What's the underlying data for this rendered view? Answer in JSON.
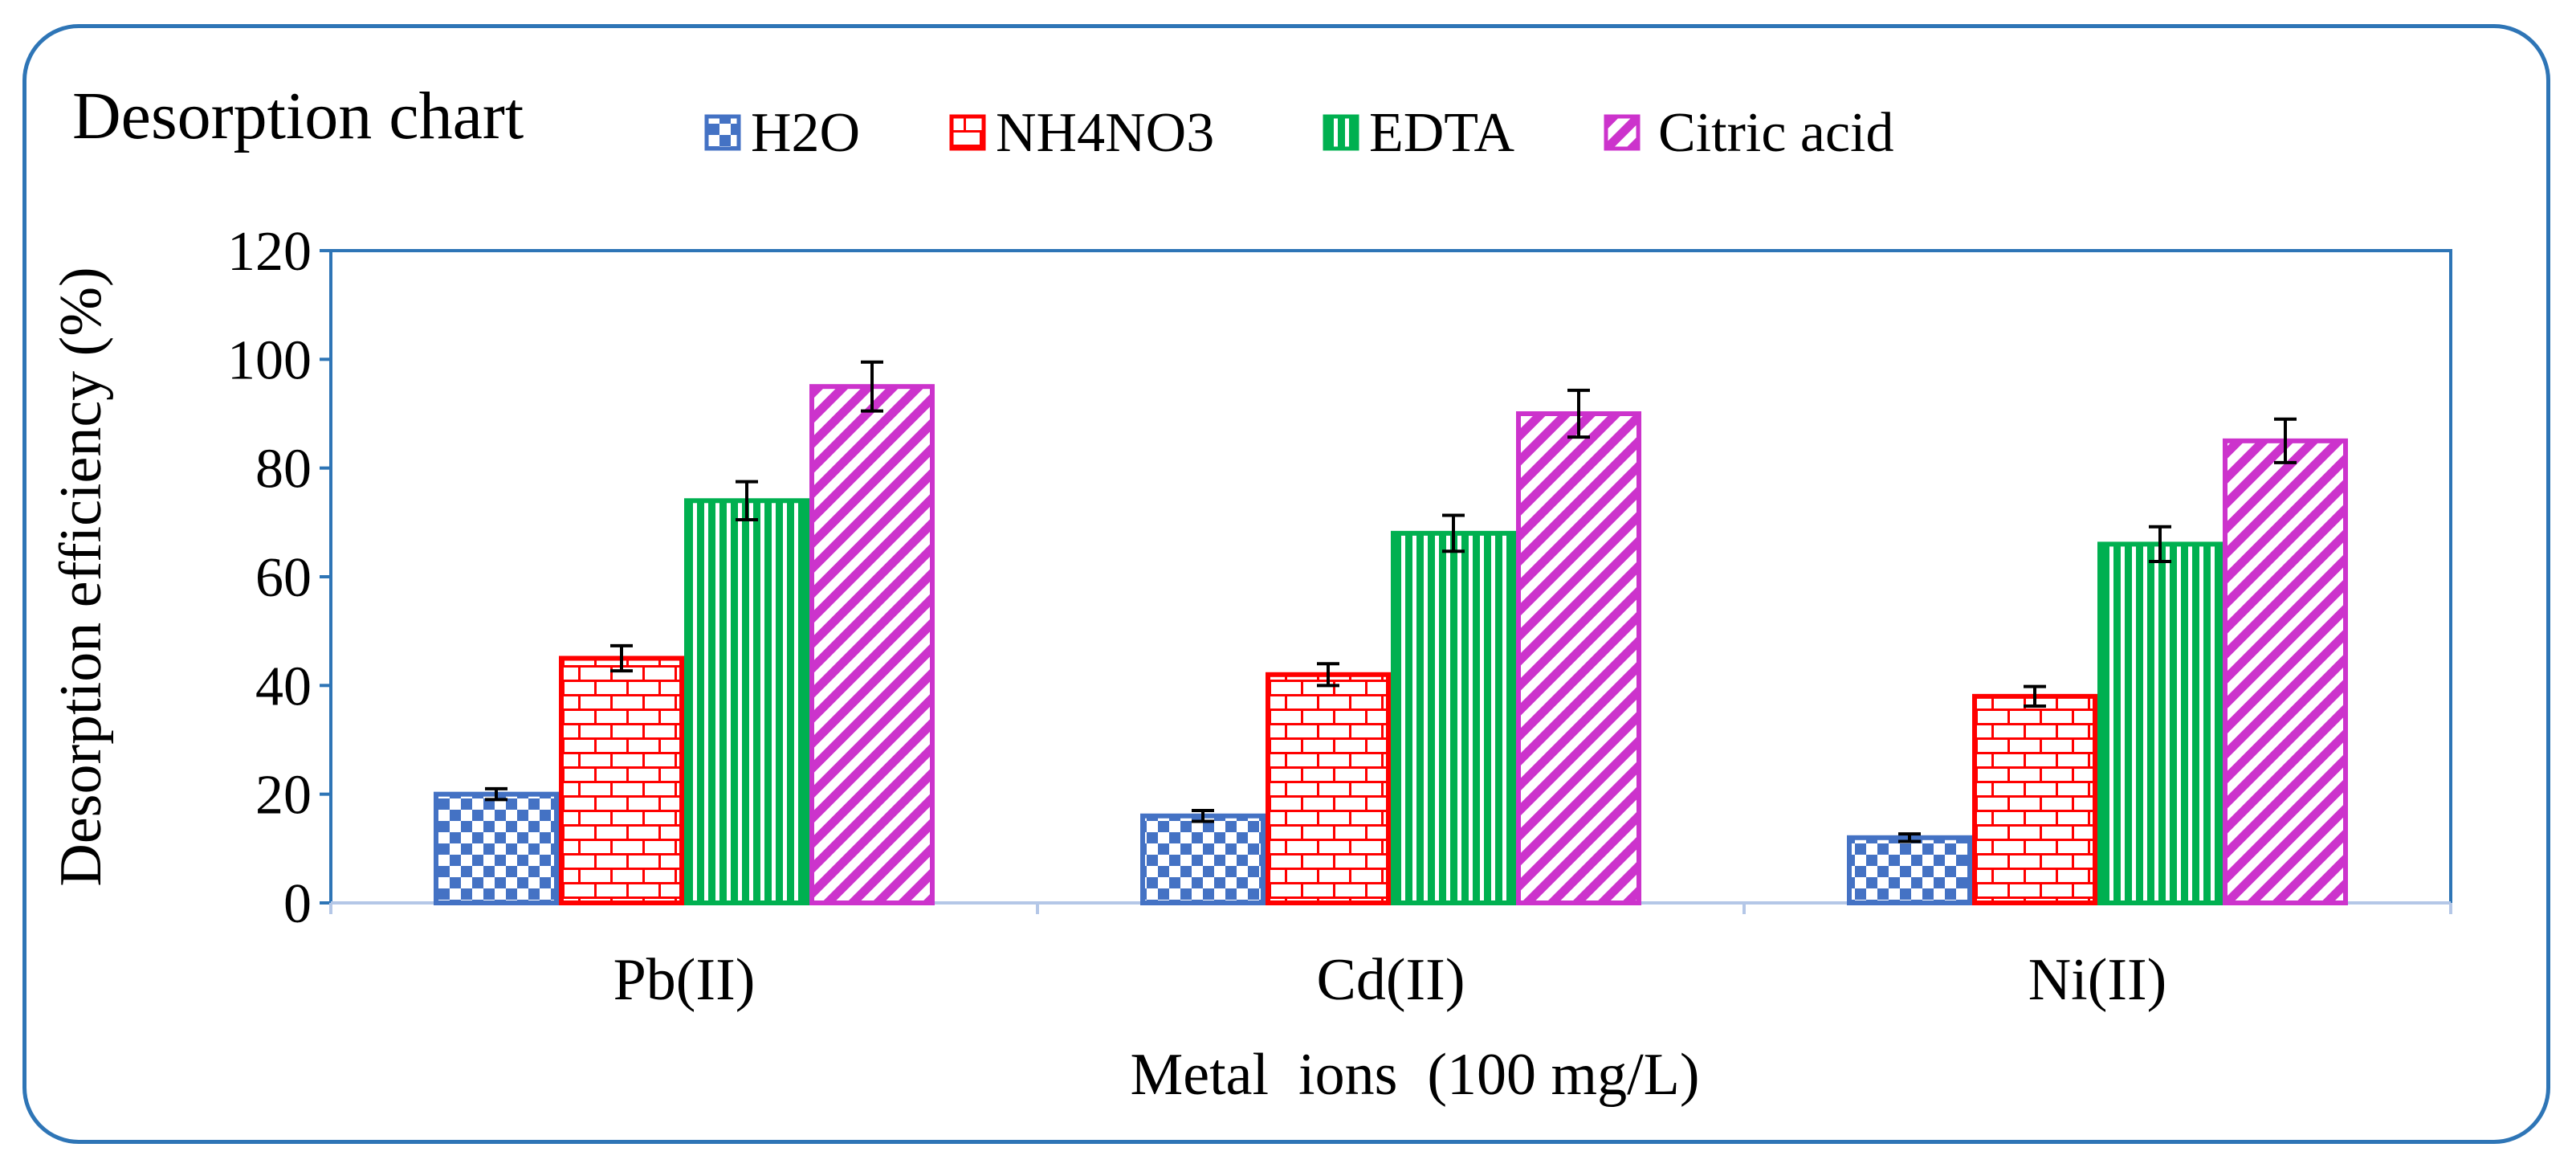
{
  "chart_data": {
    "type": "bar",
    "title": "Desorption chart",
    "xlabel": "Metal  ions  (100 mg/L)",
    "ylabel": "Desorption efficiency (%)",
    "ylim": [
      0,
      120
    ],
    "yticks": [
      0,
      20,
      40,
      60,
      80,
      100,
      120
    ],
    "categories": [
      "Pb(II)",
      "Cd(II)",
      "Ni(II)"
    ],
    "legend_position": "top",
    "series": [
      {
        "name": "H2O",
        "color": "#4472c4",
        "pattern": "checker",
        "values": [
          20,
          16,
          12
        ],
        "errors": [
          1,
          1,
          0.7
        ]
      },
      {
        "name": "NH4NO3",
        "color": "#ff0000",
        "pattern": "brick",
        "values": [
          45,
          42,
          38
        ],
        "errors": [
          2.3,
          2,
          1.8
        ]
      },
      {
        "name": "EDTA",
        "color": "#00b050",
        "pattern": "vertical",
        "values": [
          74,
          68,
          66
        ],
        "errors": [
          3.5,
          3.3,
          3.2
        ]
      },
      {
        "name": "Citric acid",
        "color": "#cc33cc",
        "pattern": "diagonal",
        "values": [
          95,
          90,
          85
        ],
        "errors": [
          4.5,
          4.3,
          4
        ]
      }
    ]
  }
}
